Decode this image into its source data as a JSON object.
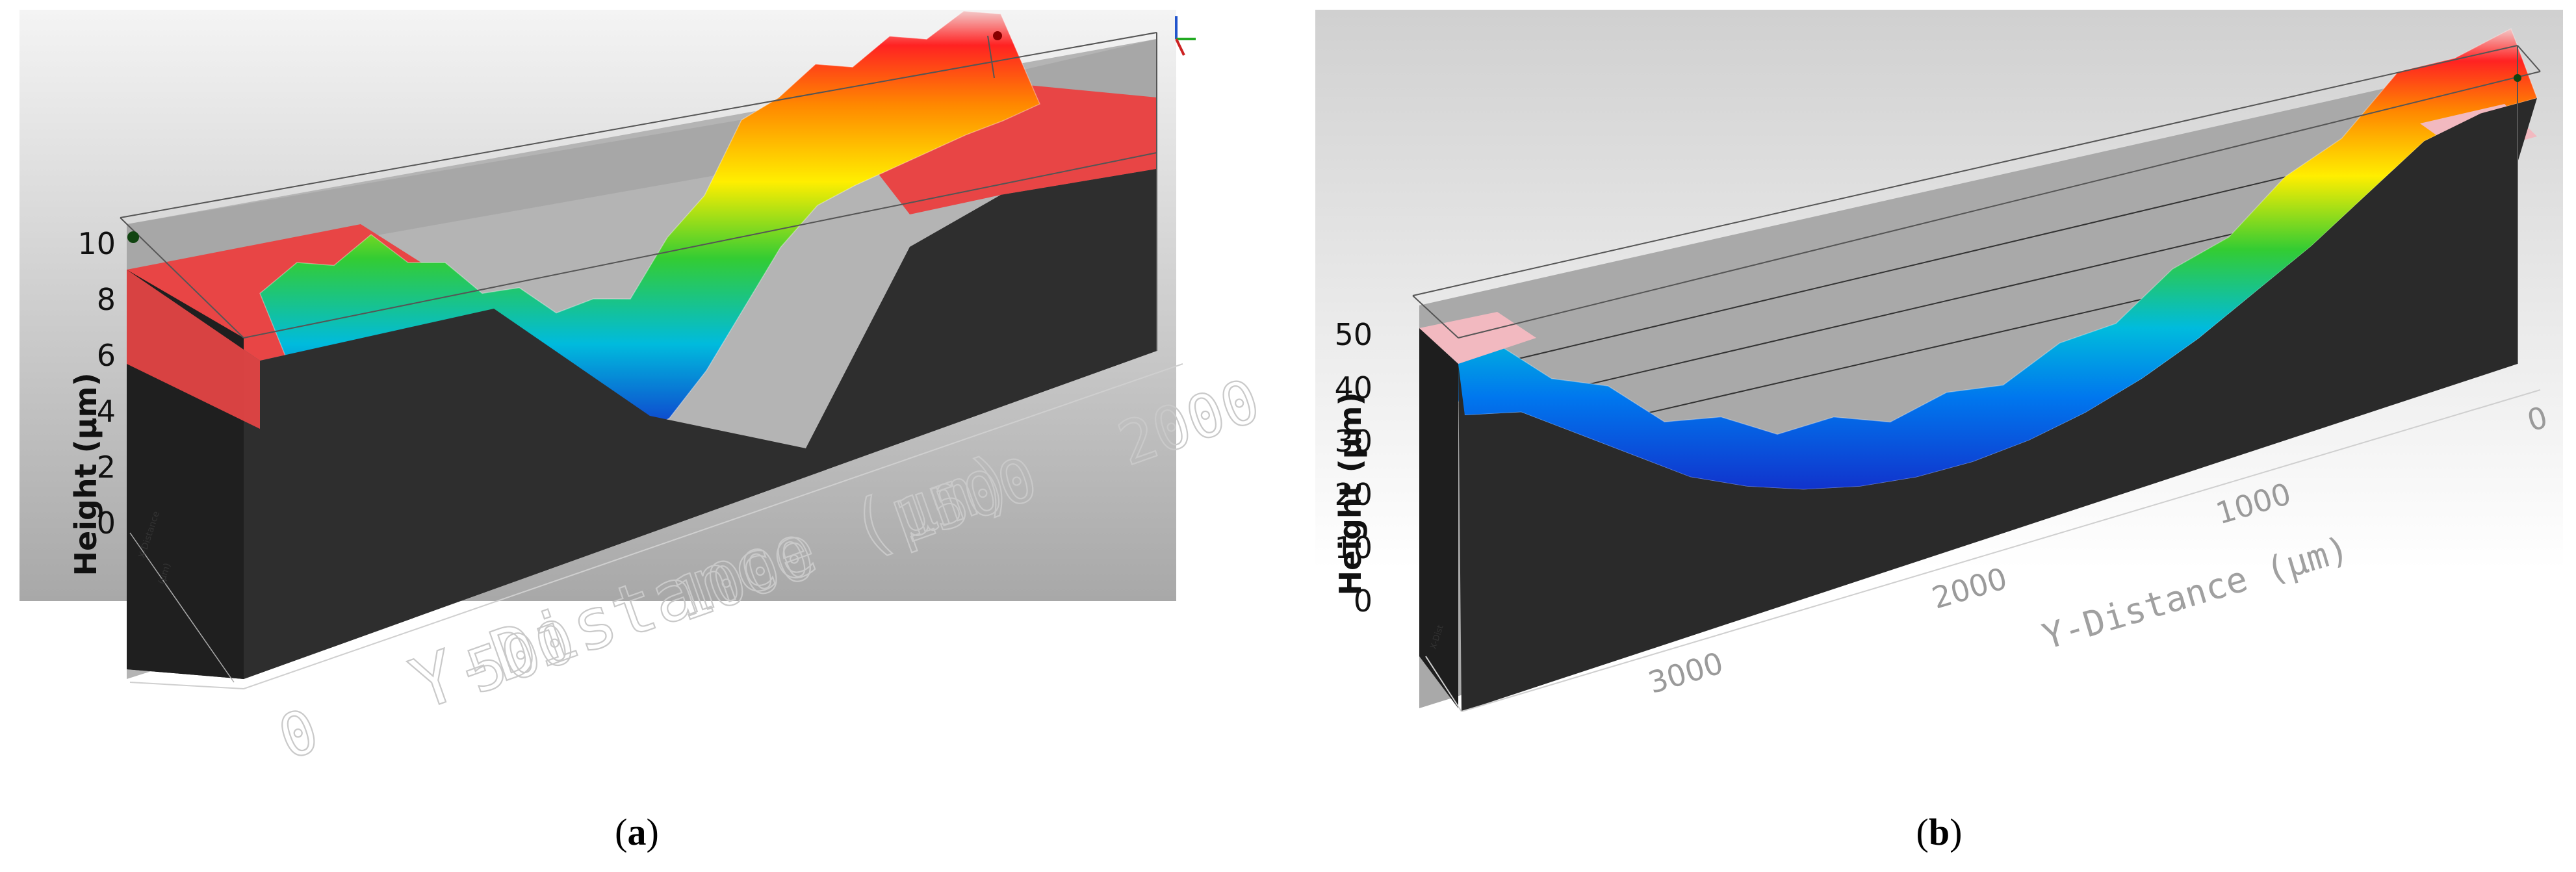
{
  "captions": {
    "a_label": "a",
    "b_label": "b",
    "open": "(",
    "close": ")"
  },
  "colors": {
    "background_top": "#ffffff",
    "background_bottom": "#a9a9a9",
    "block_face": "#2a2a2a",
    "red_plateau": "#e84545",
    "pink_plateau": "#f2b9c0",
    "frame_line": "#555555"
  },
  "chart_data": [
    {
      "type": "surface",
      "panel": "a",
      "title": "",
      "ylabel": "Height (µm)",
      "xlabel": "Y-Distance (µm)",
      "ylim": [
        0,
        10
      ],
      "yticks": [
        "0",
        "2",
        "4",
        "6",
        "8",
        "10"
      ],
      "xlim": [
        0,
        2000
      ],
      "xticks": [
        "0",
        "500",
        "1000",
        "1500",
        "2000"
      ],
      "colormap": [
        "#ff2222",
        "#ff8800",
        "#ffee00",
        "#33cc33",
        "#00bbdd",
        "#1133cc"
      ],
      "profile": {
        "x": [
          0,
          100,
          200,
          300,
          400,
          500,
          600,
          700,
          800,
          900,
          1000,
          1100,
          1200,
          1300,
          1400,
          1500,
          1600,
          1700,
          1800,
          1900,
          2000
        ],
        "height": [
          8.5,
          8.5,
          8.5,
          8.5,
          7.6,
          6.5,
          5.5,
          4.6,
          3.8,
          3.2,
          3.3,
          4.4,
          6.0,
          7.6,
          8.5,
          8.6,
          8.6,
          8.6,
          8.6,
          8.5,
          8.5
        ]
      }
    },
    {
      "type": "surface",
      "panel": "b",
      "title": "",
      "ylabel": "Height (µm)",
      "xlabel": "Y-Distance (µm)",
      "ylim": [
        0,
        50
      ],
      "yticks": [
        "0",
        "10",
        "20",
        "30",
        "40",
        "50"
      ],
      "xlim": [
        3800,
        0
      ],
      "xticks": [
        "3000",
        "2000",
        "1000",
        "0"
      ],
      "colormap": [
        "#ff2222",
        "#ff8800",
        "#ffee00",
        "#33cc33",
        "#00bbdd",
        "#1133cc"
      ],
      "profile": {
        "x": [
          3800,
          3600,
          3400,
          3200,
          3000,
          2800,
          2600,
          2400,
          2200,
          2000,
          1800,
          1600,
          1400,
          1200,
          1000,
          800,
          600,
          400,
          200,
          0
        ],
        "height": [
          48,
          46,
          40,
          34,
          28,
          24,
          21,
          19,
          18,
          18,
          19,
          21,
          24,
          28,
          33,
          38,
          44,
          50,
          52,
          52
        ]
      }
    }
  ]
}
